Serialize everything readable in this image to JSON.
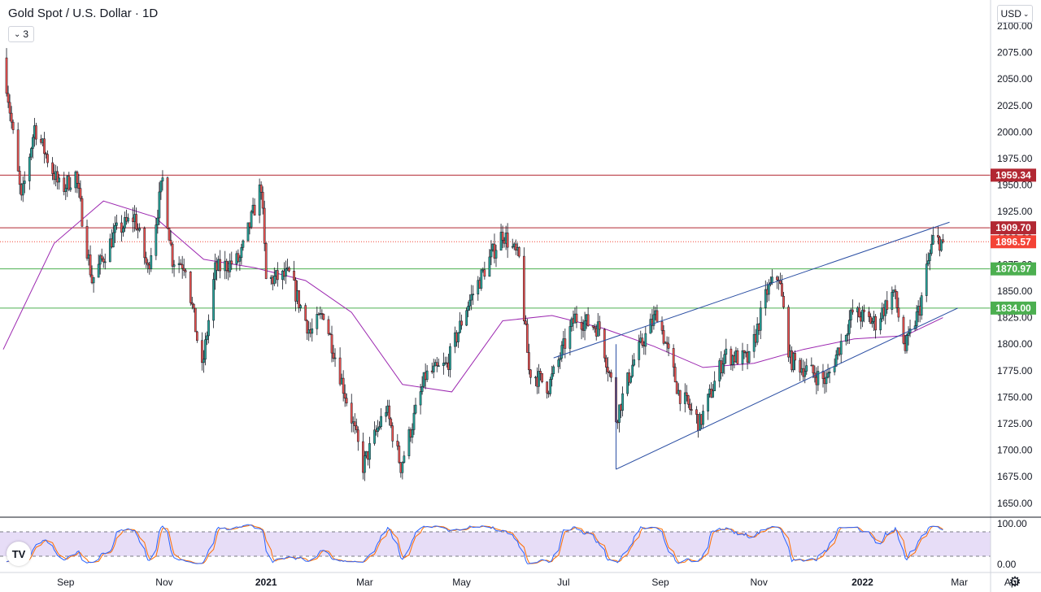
{
  "header": {
    "title": "Gold Spot / U.S. Dollar · 1D",
    "indicator_count": "3",
    "currency": "USD",
    "logo_text": "TV"
  },
  "chart_data": {
    "type": "candlestick",
    "symbol": "Gold Spot / U.S. Dollar",
    "interval": "1D",
    "ylim": [
      1637,
      2110
    ],
    "price_ticks": [
      1650,
      1675,
      1700,
      1725,
      1750,
      1775,
      1800,
      1825,
      1850,
      1875,
      1900,
      1925,
      1950,
      1975,
      2000,
      2025,
      2050,
      2075,
      2100
    ],
    "time_ticks": [
      "Sep",
      "Nov",
      "2021",
      "Mar",
      "May",
      "Jul",
      "Sep",
      "Nov",
      "2022",
      "Mar",
      "Apr"
    ],
    "colors": {
      "up": "#26a69a",
      "down": "#ef5350",
      "resistance": "#b22833",
      "support": "#4caf50",
      "channel": "#2a4ea3",
      "ma": "#9c27b0",
      "current": "#f44336",
      "stoch_k": "#2962ff",
      "stoch_d": "#ff6d00",
      "stoch_band": "#e1d4f5"
    },
    "horizontal_levels": [
      {
        "price": 1959.34,
        "label": "1959.34",
        "role": "resistance"
      },
      {
        "price": 1909.7,
        "label": "1909.70",
        "role": "resistance"
      },
      {
        "price": 1870.97,
        "label": "1870.97",
        "role": "support"
      },
      {
        "price": 1834.0,
        "label": "1834.00",
        "role": "support"
      }
    ],
    "current_price": {
      "price": 1896.57,
      "label": "1896.57"
    },
    "trend_channel": {
      "lower": {
        "from": [
          "2021-08-09",
          1682
        ],
        "to": [
          "2022-03-05",
          1834
        ]
      },
      "upper": {
        "from": [
          "2021-07-02",
          1787
        ],
        "to": [
          "2022-02-28",
          1915
        ]
      }
    },
    "moving_average": [
      [
        "2020-08-01",
        1795
      ],
      [
        "2020-09-01",
        1895
      ],
      [
        "2020-10-01",
        1935
      ],
      [
        "2020-11-01",
        1920
      ],
      [
        "2020-12-01",
        1880
      ],
      [
        "2021-01-01",
        1872
      ],
      [
        "2021-02-01",
        1860
      ],
      [
        "2021-03-01",
        1830
      ],
      [
        "2021-04-01",
        1762
      ],
      [
        "2021-05-01",
        1755
      ],
      [
        "2021-06-01",
        1822
      ],
      [
        "2021-07-01",
        1827
      ],
      [
        "2021-08-01",
        1815
      ],
      [
        "2021-09-01",
        1798
      ],
      [
        "2021-10-01",
        1778
      ],
      [
        "2021-11-01",
        1782
      ],
      [
        "2021-12-01",
        1795
      ],
      [
        "2022-01-01",
        1805
      ],
      [
        "2022-02-01",
        1808
      ],
      [
        "2022-02-24",
        1825
      ]
    ],
    "price_path": [
      [
        "2020-08-01",
        2070
      ],
      [
        "2020-08-12",
        1935
      ],
      [
        "2020-08-20",
        2005
      ],
      [
        "2020-09-05",
        1945
      ],
      [
        "2020-09-14",
        1960
      ],
      [
        "2020-09-24",
        1860
      ],
      [
        "2020-10-08",
        1905
      ],
      [
        "2020-10-20",
        1920
      ],
      [
        "2020-10-28",
        1870
      ],
      [
        "2020-11-06",
        1955
      ],
      [
        "2020-11-12",
        1880
      ],
      [
        "2020-11-20",
        1875
      ],
      [
        "2020-11-30",
        1775
      ],
      [
        "2020-12-08",
        1870
      ],
      [
        "2020-12-23",
        1880
      ],
      [
        "2021-01-05",
        1950
      ],
      [
        "2021-01-08",
        1860
      ],
      [
        "2021-01-22",
        1865
      ],
      [
        "2021-02-04",
        1810
      ],
      [
        "2021-02-12",
        1830
      ],
      [
        "2021-03-01",
        1730
      ],
      [
        "2021-03-08",
        1685
      ],
      [
        "2021-03-22",
        1740
      ],
      [
        "2021-03-31",
        1685
      ],
      [
        "2021-04-15",
        1770
      ],
      [
        "2021-04-28",
        1780
      ],
      [
        "2021-05-10",
        1835
      ],
      [
        "2021-05-24",
        1880
      ],
      [
        "2021-06-01",
        1905
      ],
      [
        "2021-06-11",
        1880
      ],
      [
        "2021-06-17",
        1775
      ],
      [
        "2021-06-29",
        1760
      ],
      [
        "2021-07-15",
        1825
      ],
      [
        "2021-07-30",
        1815
      ],
      [
        "2021-08-06",
        1765
      ],
      [
        "2021-08-09",
        1730
      ],
      [
        "2021-08-20",
        1785
      ],
      [
        "2021-09-03",
        1830
      ],
      [
        "2021-09-16",
        1755
      ],
      [
        "2021-09-29",
        1725
      ],
      [
        "2021-10-14",
        1790
      ],
      [
        "2021-10-29",
        1785
      ],
      [
        "2021-11-09",
        1850
      ],
      [
        "2021-11-16",
        1865
      ],
      [
        "2021-11-23",
        1785
      ],
      [
        "2021-12-15",
        1765
      ],
      [
        "2021-12-31",
        1830
      ],
      [
        "2022-01-14",
        1820
      ],
      [
        "2022-01-25",
        1850
      ],
      [
        "2022-02-01",
        1795
      ],
      [
        "2022-02-10",
        1835
      ],
      [
        "2022-02-14",
        1870
      ],
      [
        "2022-02-18",
        1898
      ],
      [
        "2022-02-24",
        1896.57
      ]
    ],
    "stochastic": {
      "type": "oscillator",
      "ylim": [
        0,
        100
      ],
      "ticks": [
        100,
        0
      ],
      "tick_labels": [
        "100.00",
        "0.00"
      ],
      "bands": [
        80,
        20
      ]
    }
  }
}
